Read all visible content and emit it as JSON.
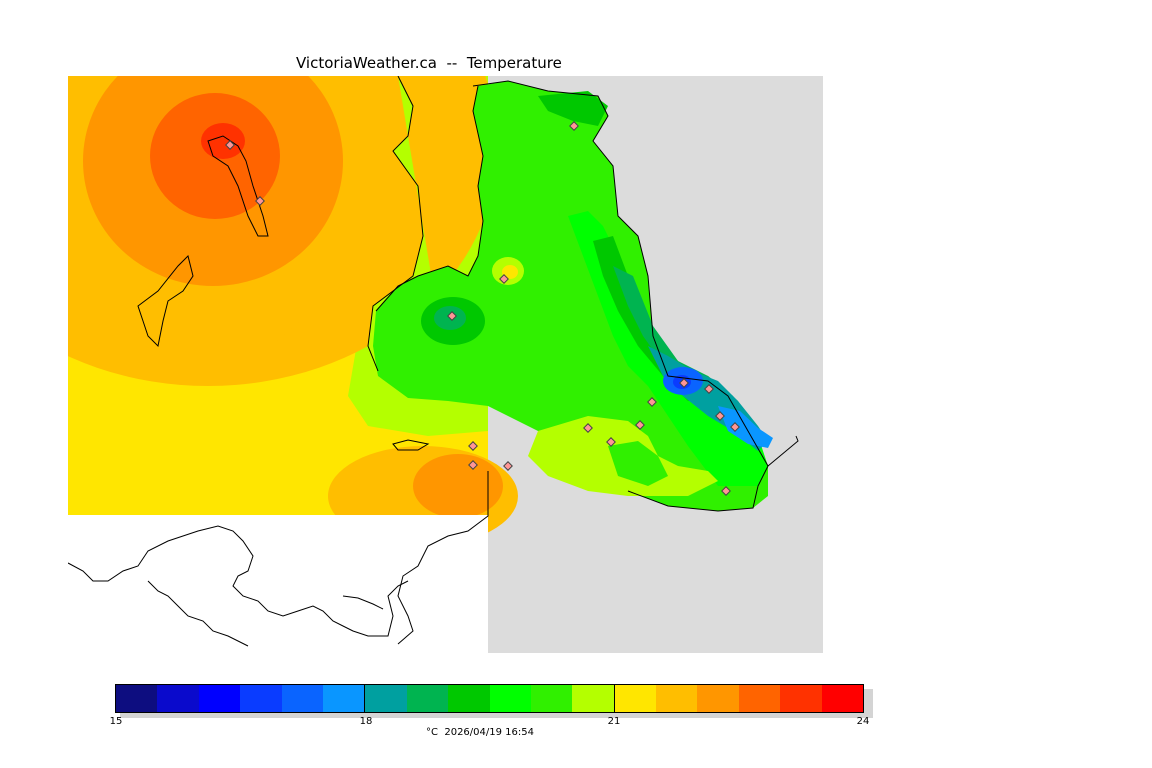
{
  "header": {
    "title": "VictoriaWeather.ca  --  Temperature"
  },
  "legend": {
    "ticks": [
      "15",
      "18",
      "21",
      "24"
    ],
    "caption": "°C  2026/04/19 16:54",
    "colors": [
      "#0d0d80",
      "#0a0acc",
      "#0000ff",
      "#0a3cff",
      "#0a64ff",
      "#0a96ff",
      "#00a0a0",
      "#00b450",
      "#00c800",
      "#00ff00",
      "#30f000",
      "#b4ff00",
      "#ffe600",
      "#ffbe00",
      "#ff9600",
      "#ff6400",
      "#ff3200",
      "#ff0000"
    ]
  },
  "map": {
    "stations": [
      "station",
      "station",
      "station",
      "station",
      "station",
      "station",
      "station",
      "station",
      "station",
      "station",
      "station",
      "station",
      "station",
      "station",
      "station",
      "station",
      "station",
      "station",
      "station",
      "station"
    ]
  }
}
